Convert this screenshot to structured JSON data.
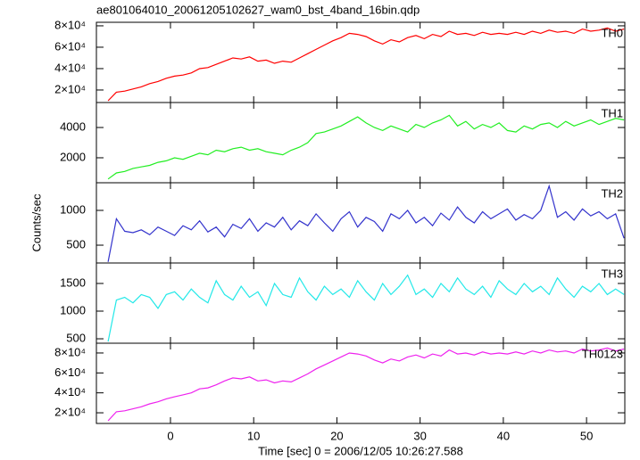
{
  "chart_data": [
    {
      "type": "line",
      "title": "ae801064010_20061205102627_wam0_bst_4band_16bin.qdp",
      "y_label": "Counts/sec",
      "series": [
        {
          "name": "TH0",
          "color": "#ff0000",
          "x": [
            -7.5,
            -6.5,
            -5.5,
            -4.5,
            -3.5,
            -2.5,
            -1.5,
            -0.5,
            0.5,
            1.5,
            2.5,
            3.5,
            4.5,
            5.5,
            6.5,
            7.5,
            8.5,
            9.5,
            10.5,
            11.5,
            12.5,
            13.5,
            14.5,
            15.5,
            16.5,
            17.5,
            18.5,
            19.5,
            20.5,
            21.5,
            22.5,
            23.5,
            24.5,
            25.5,
            26.5,
            27.5,
            28.5,
            29.5,
            30.5,
            31.5,
            32.5,
            33.5,
            34.5,
            35.5,
            36.5,
            37.5,
            38.5,
            39.5,
            40.5,
            41.5,
            42.5,
            43.5,
            44.5,
            45.5,
            46.5,
            47.5,
            48.5,
            49.5,
            50.5,
            51.5,
            52.5,
            53.5,
            54.5
          ],
          "values": [
            10000,
            18000,
            19000,
            21000,
            23000,
            26000,
            28000,
            31000,
            33000,
            34000,
            36000,
            40000,
            41000,
            44000,
            47000,
            50000,
            49000,
            51000,
            47000,
            48000,
            45000,
            47000,
            46000,
            50000,
            54000,
            58000,
            62000,
            66000,
            69000,
            73000,
            72000,
            70000,
            66000,
            63000,
            67000,
            65000,
            69000,
            71000,
            68000,
            72000,
            70000,
            75000,
            72000,
            73000,
            71000,
            74000,
            72000,
            73000,
            72000,
            74000,
            72000,
            75000,
            73000,
            76000,
            74000,
            75000,
            73000,
            77000,
            75000,
            76000,
            78000,
            75000,
            77000
          ]
        }
      ],
      "xlim": [
        -8.9,
        54.6
      ],
      "ylim": [
        8300,
        83300
      ],
      "yticks": [
        {
          "value": 20000,
          "label": "2×10⁴"
        },
        {
          "value": 40000,
          "label": "4×10⁴"
        },
        {
          "value": 60000,
          "label": "6×10⁴"
        },
        {
          "value": 80000,
          "label": "8×10⁴"
        }
      ]
    },
    {
      "type": "line",
      "series": [
        {
          "name": "TH1",
          "color": "#22ee22",
          "x": [
            -7.5,
            -6.5,
            -5.5,
            -4.5,
            -3.5,
            -2.5,
            -1.5,
            -0.5,
            0.5,
            1.5,
            2.5,
            3.5,
            4.5,
            5.5,
            6.5,
            7.5,
            8.5,
            9.5,
            10.5,
            11.5,
            12.5,
            13.5,
            14.5,
            15.5,
            16.5,
            17.5,
            18.5,
            19.5,
            20.5,
            21.5,
            22.5,
            23.5,
            24.5,
            25.5,
            26.5,
            27.5,
            28.5,
            29.5,
            30.5,
            31.5,
            32.5,
            33.5,
            34.5,
            35.5,
            36.5,
            37.5,
            38.5,
            39.5,
            40.5,
            41.5,
            42.5,
            43.5,
            44.5,
            45.5,
            46.5,
            47.5,
            48.5,
            49.5,
            50.5,
            51.5,
            52.5,
            53.5,
            54.5
          ],
          "values": [
            600,
            1000,
            1100,
            1300,
            1400,
            1500,
            1700,
            1800,
            2000,
            1900,
            2100,
            2300,
            2200,
            2500,
            2400,
            2600,
            2700,
            2500,
            2600,
            2400,
            2300,
            2200,
            2500,
            2700,
            3000,
            3600,
            3700,
            3900,
            4100,
            4400,
            4700,
            4300,
            4000,
            3800,
            4100,
            3900,
            3700,
            4200,
            4000,
            4300,
            4500,
            4800,
            4100,
            4400,
            3900,
            4200,
            4000,
            4300,
            3800,
            3700,
            4100,
            3900,
            4200,
            4300,
            4000,
            4400,
            4100,
            4300,
            4500,
            4200,
            4400,
            4600,
            4500
          ]
        }
      ],
      "xlim": [
        -8.9,
        54.6
      ],
      "ylim": [
        350,
        5650
      ],
      "yticks": [
        2000,
        4000
      ]
    },
    {
      "type": "line",
      "series": [
        {
          "name": "TH2",
          "color": "#3333cc",
          "x": [
            -7.5,
            -6.5,
            -5.5,
            -4.5,
            -3.5,
            -2.5,
            -1.5,
            -0.5,
            0.5,
            1.5,
            2.5,
            3.5,
            4.5,
            5.5,
            6.5,
            7.5,
            8.5,
            9.5,
            10.5,
            11.5,
            12.5,
            13.5,
            14.5,
            15.5,
            16.5,
            17.5,
            18.5,
            19.5,
            20.5,
            21.5,
            22.5,
            23.5,
            24.5,
            25.5,
            26.5,
            27.5,
            28.5,
            29.5,
            30.5,
            31.5,
            32.5,
            33.5,
            34.5,
            35.5,
            36.5,
            37.5,
            38.5,
            39.5,
            40.5,
            41.5,
            42.5,
            43.5,
            44.5,
            45.5,
            46.5,
            47.5,
            48.5,
            49.5,
            50.5,
            51.5,
            52.5,
            53.5,
            54.5
          ],
          "values": [
            260,
            880,
            700,
            680,
            720,
            650,
            760,
            700,
            640,
            780,
            720,
            850,
            690,
            760,
            620,
            800,
            740,
            880,
            700,
            820,
            760,
            900,
            720,
            850,
            780,
            950,
            820,
            700,
            880,
            980,
            760,
            900,
            840,
            700,
            950,
            880,
            1000,
            820,
            900,
            780,
            960,
            860,
            1050,
            900,
            820,
            980,
            880,
            950,
            1020,
            860,
            940,
            880,
            1000,
            1350,
            900,
            980,
            860,
            1020,
            920,
            980,
            880,
            950,
            600
          ]
        }
      ],
      "xlim": [
        -8.9,
        54.6
      ],
      "ylim": [
        244,
        1397
      ],
      "yticks": [
        500,
        1000
      ]
    },
    {
      "type": "line",
      "series": [
        {
          "name": "TH3",
          "color": "#22e8e8",
          "x": [
            -7.5,
            -6.5,
            -5.5,
            -4.5,
            -3.5,
            -2.5,
            -1.5,
            -0.5,
            0.5,
            1.5,
            2.5,
            3.5,
            4.5,
            5.5,
            6.5,
            7.5,
            8.5,
            9.5,
            10.5,
            11.5,
            12.5,
            13.5,
            14.5,
            15.5,
            16.5,
            17.5,
            18.5,
            19.5,
            20.5,
            21.5,
            22.5,
            23.5,
            24.5,
            25.5,
            26.5,
            27.5,
            28.5,
            29.5,
            30.5,
            31.5,
            32.5,
            33.5,
            34.5,
            35.5,
            36.5,
            37.5,
            38.5,
            39.5,
            40.5,
            41.5,
            42.5,
            43.5,
            44.5,
            45.5,
            46.5,
            47.5,
            48.5,
            49.5,
            50.5,
            51.5,
            52.5,
            53.5,
            54.5
          ],
          "values": [
            450,
            1200,
            1250,
            1150,
            1300,
            1250,
            1050,
            1300,
            1350,
            1200,
            1400,
            1250,
            1150,
            1550,
            1300,
            1200,
            1450,
            1250,
            1350,
            1100,
            1500,
            1300,
            1250,
            1600,
            1350,
            1200,
            1450,
            1300,
            1400,
            1250,
            1550,
            1350,
            1200,
            1500,
            1300,
            1450,
            1650,
            1300,
            1400,
            1250,
            1500,
            1350,
            1600,
            1400,
            1300,
            1450,
            1250,
            1550,
            1400,
            1300,
            1500,
            1350,
            1450,
            1300,
            1600,
            1400,
            1250,
            1450,
            1350,
            1500,
            1300,
            1400,
            1300
          ]
        }
      ],
      "xlim": [
        -8.9,
        54.6
      ],
      "ylim": [
        420,
        1870
      ],
      "yticks": [
        500,
        1000,
        1500
      ]
    },
    {
      "type": "line",
      "x_label": "Time [sec] 0 = 2006/12/05 10:26:27.588",
      "series": [
        {
          "name": "TH0123",
          "color": "#ee22ee",
          "x": [
            -7.5,
            -6.5,
            -5.5,
            -4.5,
            -3.5,
            -2.5,
            -1.5,
            -0.5,
            0.5,
            1.5,
            2.5,
            3.5,
            4.5,
            5.5,
            6.5,
            7.5,
            8.5,
            9.5,
            10.5,
            11.5,
            12.5,
            13.5,
            14.5,
            15.5,
            16.5,
            17.5,
            18.5,
            19.5,
            20.5,
            21.5,
            22.5,
            23.5,
            24.5,
            25.5,
            26.5,
            27.5,
            28.5,
            29.5,
            30.5,
            31.5,
            32.5,
            33.5,
            34.5,
            35.5,
            36.5,
            37.5,
            38.5,
            39.5,
            40.5,
            41.5,
            42.5,
            43.5,
            44.5,
            45.5,
            46.5,
            47.5,
            48.5,
            49.5,
            50.5,
            51.5,
            52.5,
            53.5,
            54.5
          ],
          "values": [
            12000,
            21000,
            22000,
            24000,
            26000,
            29000,
            31000,
            34000,
            36000,
            38000,
            40000,
            44000,
            45000,
            48000,
            52000,
            55000,
            54000,
            56000,
            52000,
            53000,
            50000,
            52000,
            51000,
            55000,
            59000,
            64000,
            68000,
            72000,
            76000,
            80000,
            79000,
            77000,
            73000,
            70000,
            74000,
            72000,
            76000,
            78000,
            75000,
            79000,
            77000,
            83000,
            79000,
            80000,
            78000,
            81000,
            79000,
            80000,
            79000,
            81000,
            79000,
            82000,
            80000,
            83000,
            81000,
            82000,
            80000,
            84000,
            82000,
            83000,
            85000,
            82000,
            84000
          ]
        }
      ],
      "xlim": [
        -8.9,
        54.6
      ],
      "ylim": [
        9300,
        89800
      ],
      "yticks": [
        {
          "value": 20000,
          "label": "2×10⁴"
        },
        {
          "value": 40000,
          "label": "4×10⁴"
        },
        {
          "value": 60000,
          "label": "6×10⁴"
        },
        {
          "value": 80000,
          "label": "8×10⁴"
        }
      ],
      "xticks": [
        0,
        10,
        20,
        30,
        40,
        50
      ]
    }
  ]
}
